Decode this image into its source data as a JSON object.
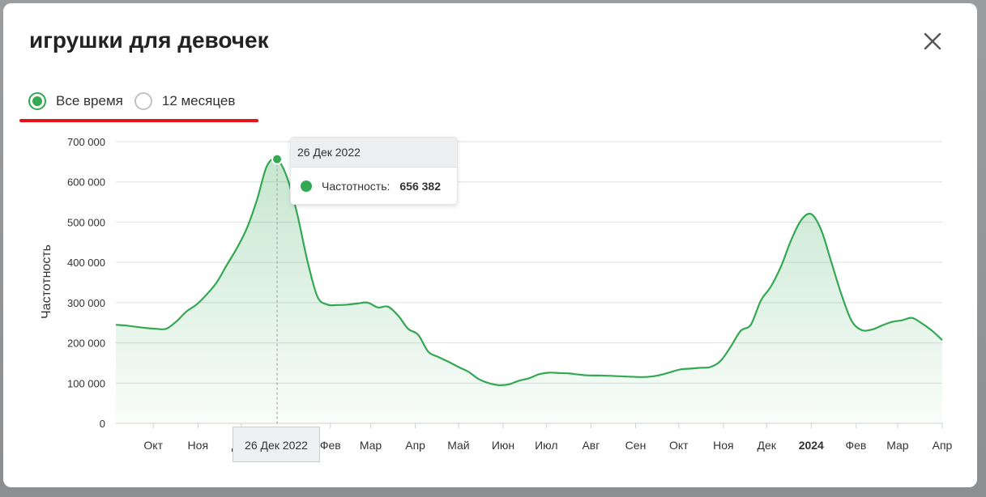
{
  "modal": {
    "title": "игрушки для девочек",
    "close_icon": "close-icon"
  },
  "range_selector": {
    "options": [
      {
        "label": "Все время",
        "checked": true
      },
      {
        "label": "12 месяцев",
        "checked": false
      }
    ]
  },
  "colors": {
    "line": "#34a853",
    "area": "#cfe5d5",
    "highlight_underline": "#e3141c",
    "grid": "#dddfe1"
  },
  "tooltip": {
    "date": "26 Дек 2022",
    "series_label": "Частотность:",
    "value": "656 382"
  },
  "crosshair_label": "26 Дек 2022",
  "chart_data": {
    "type": "area",
    "ylabel": "Частотность",
    "ylim": [
      0,
      700000
    ],
    "y_ticks": [
      {
        "value": 0,
        "label": "0"
      },
      {
        "value": 100000,
        "label": "100 000"
      },
      {
        "value": 200000,
        "label": "200 000"
      },
      {
        "value": 300000,
        "label": "300 000"
      },
      {
        "value": 400000,
        "label": "400 000"
      },
      {
        "value": 500000,
        "label": "500 000"
      },
      {
        "value": 600000,
        "label": "600 000"
      },
      {
        "value": 700000,
        "label": "700 000"
      }
    ],
    "x_ticks": [
      {
        "date": "2022-10-01",
        "label": "Окт",
        "bold": false
      },
      {
        "date": "2022-11-01",
        "label": "Ноя",
        "bold": false
      },
      {
        "date": "2022-12-01",
        "label": "Дек",
        "bold": false
      },
      {
        "date": "2023-02-01",
        "label": "Фев",
        "bold": false
      },
      {
        "date": "2023-03-01",
        "label": "Мар",
        "bold": false
      },
      {
        "date": "2023-04-01",
        "label": "Апр",
        "bold": false
      },
      {
        "date": "2023-05-01",
        "label": "Май",
        "bold": false
      },
      {
        "date": "2023-06-01",
        "label": "Июн",
        "bold": false
      },
      {
        "date": "2023-07-01",
        "label": "Июл",
        "bold": false
      },
      {
        "date": "2023-08-01",
        "label": "Авг",
        "bold": false
      },
      {
        "date": "2023-09-01",
        "label": "Сен",
        "bold": false
      },
      {
        "date": "2023-10-01",
        "label": "Окт",
        "bold": false
      },
      {
        "date": "2023-11-01",
        "label": "Ноя",
        "bold": false
      },
      {
        "date": "2023-12-01",
        "label": "Дек",
        "bold": false
      },
      {
        "date": "2024-01-01",
        "label": "2024",
        "bold": true
      },
      {
        "date": "2024-02-01",
        "label": "Фев",
        "bold": false
      },
      {
        "date": "2024-03-01",
        "label": "Мар",
        "bold": false
      },
      {
        "date": "2024-04-01",
        "label": "Апр",
        "bold": false
      }
    ],
    "x_range": [
      "2022-09-05",
      "2024-04-01"
    ],
    "highlight": {
      "date": "2022-12-26",
      "value": 656382
    },
    "series": [
      {
        "points": [
          [
            "2022-09-05",
            245000
          ],
          [
            "2022-09-12",
            243000
          ],
          [
            "2022-09-19",
            240000
          ],
          [
            "2022-09-26",
            237000
          ],
          [
            "2022-10-03",
            235000
          ],
          [
            "2022-10-10",
            235000
          ],
          [
            "2022-10-17",
            253000
          ],
          [
            "2022-10-24",
            278000
          ],
          [
            "2022-10-31",
            295000
          ],
          [
            "2022-11-07",
            320000
          ],
          [
            "2022-11-14",
            350000
          ],
          [
            "2022-11-21",
            393000
          ],
          [
            "2022-11-28",
            435000
          ],
          [
            "2022-12-05",
            485000
          ],
          [
            "2022-12-12",
            555000
          ],
          [
            "2022-12-19",
            640000
          ],
          [
            "2022-12-26",
            656382
          ],
          [
            "2023-01-02",
            610000
          ],
          [
            "2023-01-09",
            520000
          ],
          [
            "2023-01-16",
            405000
          ],
          [
            "2023-01-23",
            315000
          ],
          [
            "2023-01-30",
            295000
          ],
          [
            "2023-02-06",
            294000
          ],
          [
            "2023-02-13",
            295000
          ],
          [
            "2023-02-20",
            298000
          ],
          [
            "2023-02-27",
            300000
          ],
          [
            "2023-03-06",
            288000
          ],
          [
            "2023-03-13",
            290000
          ],
          [
            "2023-03-20",
            268000
          ],
          [
            "2023-03-27",
            235000
          ],
          [
            "2023-04-03",
            220000
          ],
          [
            "2023-04-10",
            178000
          ],
          [
            "2023-04-17",
            165000
          ],
          [
            "2023-04-24",
            153000
          ],
          [
            "2023-05-01",
            140000
          ],
          [
            "2023-05-08",
            128000
          ],
          [
            "2023-05-15",
            110000
          ],
          [
            "2023-05-22",
            100000
          ],
          [
            "2023-05-29",
            95000
          ],
          [
            "2023-06-05",
            97000
          ],
          [
            "2023-06-12",
            106000
          ],
          [
            "2023-06-19",
            112000
          ],
          [
            "2023-06-26",
            122000
          ],
          [
            "2023-07-03",
            126000
          ],
          [
            "2023-07-10",
            125000
          ],
          [
            "2023-07-17",
            124000
          ],
          [
            "2023-07-24",
            121000
          ],
          [
            "2023-07-31",
            119000
          ],
          [
            "2023-08-07",
            119000
          ],
          [
            "2023-08-14",
            118000
          ],
          [
            "2023-08-21",
            117000
          ],
          [
            "2023-08-28",
            116000
          ],
          [
            "2023-09-04",
            115000
          ],
          [
            "2023-09-11",
            116000
          ],
          [
            "2023-09-18",
            120000
          ],
          [
            "2023-09-25",
            127000
          ],
          [
            "2023-10-02",
            134000
          ],
          [
            "2023-10-09",
            136000
          ],
          [
            "2023-10-16",
            138000
          ],
          [
            "2023-10-23",
            140000
          ],
          [
            "2023-10-30",
            155000
          ],
          [
            "2023-11-06",
            190000
          ],
          [
            "2023-11-13",
            230000
          ],
          [
            "2023-11-20",
            245000
          ],
          [
            "2023-11-27",
            305000
          ],
          [
            "2023-12-04",
            340000
          ],
          [
            "2023-12-11",
            390000
          ],
          [
            "2023-12-18",
            455000
          ],
          [
            "2023-12-25",
            505000
          ],
          [
            "2024-01-01",
            520000
          ],
          [
            "2024-01-08",
            480000
          ],
          [
            "2024-01-15",
            400000
          ],
          [
            "2024-01-22",
            320000
          ],
          [
            "2024-01-29",
            255000
          ],
          [
            "2024-02-05",
            232000
          ],
          [
            "2024-02-12",
            233000
          ],
          [
            "2024-02-19",
            243000
          ],
          [
            "2024-02-26",
            252000
          ],
          [
            "2024-03-04",
            256000
          ],
          [
            "2024-03-11",
            262000
          ],
          [
            "2024-03-18",
            248000
          ],
          [
            "2024-03-25",
            230000
          ],
          [
            "2024-04-01",
            207000
          ]
        ]
      }
    ]
  }
}
